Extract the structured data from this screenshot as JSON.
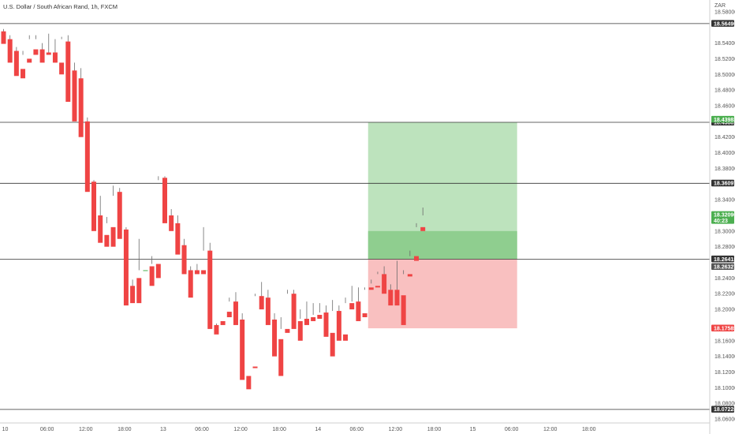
{
  "chart_data": {
    "type": "candlestick",
    "title": "U.S. Dollar / South African Rand, 1h, FXCM",
    "currency": "ZAR",
    "ylim": [
      18.055,
      18.595
    ],
    "y_ticks": [
      "18.58000",
      "18.54000",
      "18.52000",
      "18.50000",
      "18.48000",
      "18.46000",
      "18.42000",
      "18.40000",
      "18.38000",
      "18.34000",
      "18.30000",
      "18.28000",
      "18.24000",
      "18.22000",
      "18.20000",
      "18.16000",
      "18.14000",
      "18.12000",
      "18.10000",
      "18.08000",
      "18.06000"
    ],
    "x_ticks": [
      {
        "label": "10",
        "i": 0
      },
      {
        "label": "06:00",
        "i": 6.5
      },
      {
        "label": "12:00",
        "i": 12.5
      },
      {
        "label": "18:00",
        "i": 18.5
      },
      {
        "label": "13",
        "i": 24.5
      },
      {
        "label": "06:00",
        "i": 30.5
      },
      {
        "label": "12:00",
        "i": 36.5
      },
      {
        "label": "18:00",
        "i": 42.5
      },
      {
        "label": "14",
        "i": 48.5
      },
      {
        "label": "06:00",
        "i": 54.5
      },
      {
        "label": "12:00",
        "i": 60.5
      },
      {
        "label": "18:00",
        "i": 66.5
      },
      {
        "label": "15",
        "i": 72.5
      },
      {
        "label": "06:00",
        "i": 78.5
      },
      {
        "label": "12:00",
        "i": 84.5
      },
      {
        "label": "18:00",
        "i": 90.5
      }
    ],
    "candles": [
      [
        18.555,
        18.558,
        18.543,
        18.539
      ],
      [
        18.545,
        18.55,
        18.52,
        18.515
      ],
      [
        18.53,
        18.535,
        18.505,
        18.498
      ],
      [
        18.507,
        18.53,
        18.525,
        18.495
      ],
      [
        18.52,
        18.55,
        18.545,
        18.515
      ],
      [
        18.532,
        18.55,
        18.545,
        18.525
      ],
      [
        18.532,
        18.54,
        18.528,
        18.515
      ],
      [
        18.528,
        18.552,
        18.528,
        18.525
      ],
      [
        18.528,
        18.545,
        18.515,
        18.515
      ],
      [
        18.515,
        18.548,
        18.545,
        18.5
      ],
      [
        18.542,
        18.55,
        18.505,
        18.465
      ],
      [
        18.505,
        18.515,
        18.445,
        18.44
      ],
      [
        18.495,
        18.508,
        18.44,
        18.42
      ],
      [
        18.44,
        18.445,
        18.36,
        18.35
      ],
      [
        18.363,
        18.365,
        18.32,
        18.3
      ],
      [
        18.32,
        18.345,
        18.295,
        18.285
      ],
      [
        18.295,
        18.318,
        18.31,
        18.28
      ],
      [
        18.305,
        18.358,
        18.345,
        18.28
      ],
      [
        18.35,
        18.355,
        18.3,
        18.29
      ],
      [
        18.302,
        18.305,
        18.225,
        18.205
      ],
      [
        18.23,
        18.238,
        18.213,
        18.208
      ],
      [
        18.24,
        18.29,
        18.25,
        18.208
      ],
      [
        18.25,
        18.265,
        18.265,
        18.25
      ],
      [
        18.255,
        18.268,
        18.258,
        18.23
      ],
      [
        18.258,
        18.37,
        18.365,
        18.24
      ],
      [
        18.368,
        18.37,
        18.32,
        18.31
      ],
      [
        18.32,
        18.328,
        18.31,
        18.3
      ],
      [
        18.31,
        18.32,
        18.28,
        18.27
      ],
      [
        18.282,
        18.29,
        18.25,
        18.245
      ],
      [
        18.25,
        18.255,
        18.25,
        18.215
      ],
      [
        18.25,
        18.258,
        18.25,
        18.245
      ],
      [
        18.25,
        18.305,
        18.275,
        18.245
      ],
      [
        18.275,
        18.285,
        18.18,
        18.175
      ],
      [
        18.18,
        18.182,
        18.175,
        18.168
      ],
      [
        18.185,
        18.197,
        18.197,
        18.18
      ],
      [
        18.197,
        18.215,
        18.21,
        18.19
      ],
      [
        18.21,
        18.222,
        18.187,
        18.18
      ],
      [
        18.187,
        18.195,
        18.115,
        18.11
      ],
      [
        18.115,
        18.125,
        18.125,
        18.098
      ],
      [
        18.127,
        18.22,
        18.217,
        18.125
      ],
      [
        18.217,
        18.235,
        18.21,
        18.2
      ],
      [
        18.215,
        18.225,
        18.187,
        18.18
      ],
      [
        18.187,
        18.195,
        18.16,
        18.14
      ],
      [
        18.162,
        18.19,
        18.175,
        18.115
      ],
      [
        18.175,
        18.225,
        18.22,
        18.17
      ],
      [
        18.22,
        18.225,
        18.185,
        18.175
      ],
      [
        18.185,
        18.2,
        18.188,
        18.16
      ],
      [
        18.188,
        18.21,
        18.188,
        18.18
      ],
      [
        18.19,
        18.208,
        18.193,
        18.185
      ],
      [
        18.193,
        18.208,
        18.196,
        18.188
      ],
      [
        18.196,
        18.205,
        18.17,
        18.165
      ],
      [
        18.17,
        18.212,
        18.198,
        18.14
      ],
      [
        18.198,
        18.205,
        18.165,
        18.16
      ],
      [
        18.168,
        18.215,
        18.208,
        18.16
      ],
      [
        18.208,
        18.23,
        18.21,
        18.2
      ],
      [
        18.21,
        18.228,
        18.195,
        18.185
      ],
      [
        18.195,
        18.225,
        18.228,
        18.19
      ],
      [
        18.228,
        18.238,
        18.233,
        18.225
      ],
      [
        18.23,
        18.248,
        18.245,
        18.228
      ],
      [
        18.245,
        18.255,
        18.23,
        18.22
      ],
      [
        18.225,
        18.232,
        18.225,
        18.205
      ],
      [
        18.225,
        18.262,
        18.225,
        18.205
      ],
      [
        18.218,
        18.25,
        18.245,
        18.18
      ],
      [
        18.245,
        18.275,
        18.268,
        18.242
      ],
      [
        18.268,
        18.31,
        18.305,
        18.262
      ],
      [
        18.305,
        18.33,
        18.32,
        18.3
      ]
    ],
    "colors": {
      "up": "#4caf50",
      "down": "#ef4444",
      "wick": "#6b6b6b"
    },
    "horizontal_lines": [
      {
        "value": 18.5649,
        "label": "18.56490",
        "color": "#333333"
      },
      {
        "value": 18.43881,
        "label": "18.43881",
        "color": "#333333"
      },
      {
        "value": 18.36097,
        "label": "18.36097",
        "color": "#333333"
      },
      {
        "value": 18.26418,
        "label": "18.26418",
        "color": "#333333"
      },
      {
        "value": 18.07228,
        "label": "18.07228",
        "color": "#333333"
      }
    ],
    "position": {
      "type": "long",
      "entry": 18.26418,
      "target": 18.43881,
      "stop": 18.17585,
      "start_index": 57,
      "end_index": 79,
      "profit_color": "#bde3bd",
      "loss_color": "#f9c0c0"
    },
    "price_tags": [
      {
        "value": 18.43881,
        "label": "18.43881",
        "color": "#333333"
      },
      {
        "value": 18.4425,
        "label": "18.43983",
        "color": "#4caf50"
      },
      {
        "value": 18.36097,
        "label": "18.36097",
        "color": "#333333"
      },
      {
        "value": 18.3209,
        "label": "18.32096",
        "sublabel": "40:23",
        "color": "#4caf50"
      },
      {
        "value": 18.26418,
        "label": "18.26418",
        "color": "#333333"
      },
      {
        "value": 18.2545,
        "label": "18.26327",
        "color": "#555555"
      },
      {
        "value": 18.17585,
        "label": "18.17585",
        "color": "#ef4444"
      },
      {
        "value": 18.5649,
        "label": "18.56490",
        "color": "#333333"
      },
      {
        "value": 18.07228,
        "label": "18.07228",
        "color": "#333333"
      }
    ]
  }
}
